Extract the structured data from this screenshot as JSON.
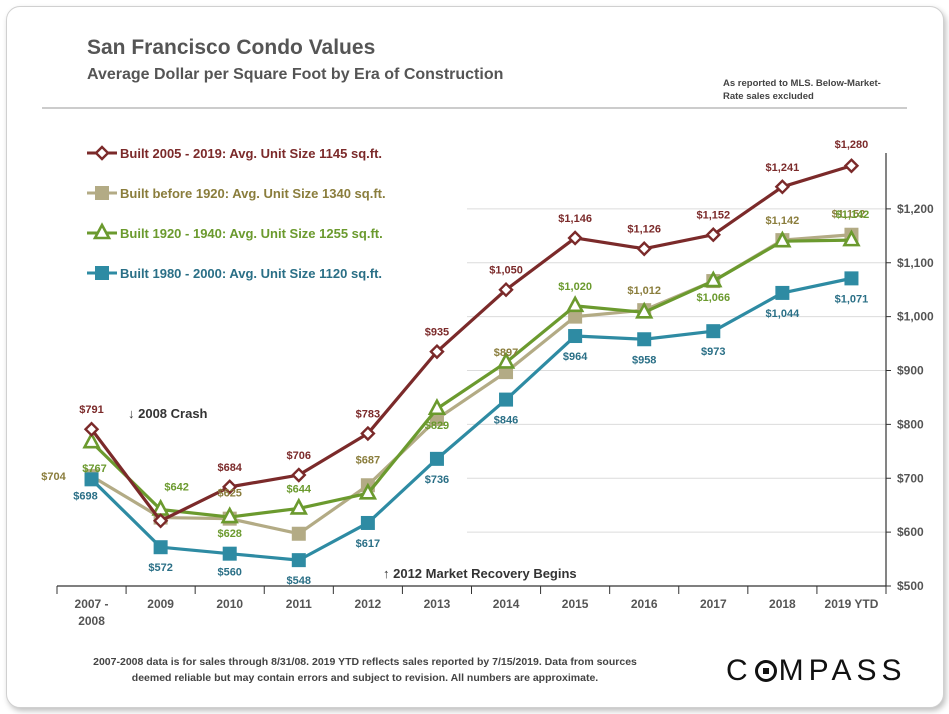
{
  "header": {
    "title": "San Francisco Condo Values",
    "subtitle": "Average Dollar per Square Foot by Era of Construction",
    "note_line1": "As reported to MLS. Below-Market-",
    "note_line2": "Rate sales excluded"
  },
  "footer": {
    "line1": "2007-2008 data is for sales through 8/31/08. 2019 YTD reflects sales reported by 7/15/2019. Data from sources",
    "line2": "deemed reliable but may contain errors and subject to revision. All numbers are approximate."
  },
  "logo": {
    "text_left": "C",
    "text_right": "MPASS"
  },
  "chart_data": {
    "type": "line",
    "title": "San Francisco Condo Values",
    "subtitle": "Average Dollar per Square Foot by Era of Construction",
    "categories": [
      "2007 - 2008",
      "2009",
      "2010",
      "2011",
      "2012",
      "2013",
      "2014",
      "2015",
      "2016",
      "2017",
      "2018",
      "2019  YTD"
    ],
    "category_lines": [
      [
        "2007 -",
        "2008"
      ],
      [
        "2009"
      ],
      [
        "2010"
      ],
      [
        "2011"
      ],
      [
        "2012"
      ],
      [
        "2013"
      ],
      [
        "2014"
      ],
      [
        "2015"
      ],
      [
        "2016"
      ],
      [
        "2017"
      ],
      [
        "2018"
      ],
      [
        "2019  YTD"
      ]
    ],
    "ylim": [
      500,
      1300
    ],
    "y_ticks": [
      500,
      600,
      700,
      800,
      900,
      1000,
      1100,
      1200
    ],
    "y_tick_labels": [
      "$500",
      "$600",
      "$700",
      "$800",
      "$900",
      "$1,000",
      "$1,100",
      "$1,200"
    ],
    "y_axis_side": "right",
    "legend_position": "top-left",
    "series": [
      {
        "name": "Built 2005 - 2019: Avg. Unit Size 1145 sq.ft.",
        "color": "#7B2A2A",
        "marker": "diamond",
        "values": [
          791,
          621,
          684,
          706,
          783,
          935,
          1050,
          1146,
          1126,
          1152,
          1241,
          1280
        ],
        "labels": [
          "$791",
          null,
          "$684",
          "$706",
          "$783",
          "$935",
          "$1,050",
          "$1,146",
          "$1,126",
          "$1,152",
          "$1,241",
          "$1,280"
        ]
      },
      {
        "name": "Built before 1920: Avg. Unit Size 1340 sq.ft.",
        "color": "#B3AB85",
        "label_color": "#8A7D3C",
        "marker": "square",
        "values": [
          704,
          627,
          625,
          597,
          687,
          810,
          897,
          1000,
          1012,
          1066,
          1142,
          1152
        ],
        "labels": [
          "$704",
          null,
          "$625",
          null,
          "$687",
          null,
          "$897",
          null,
          "$1,012",
          null,
          "$1,142",
          "$1,152"
        ]
      },
      {
        "name": "Built 1920 - 1940: Avg. Unit Size 1255 sq.ft.",
        "color": "#6B9A2E",
        "marker": "triangle",
        "values": [
          767,
          642,
          628,
          644,
          672,
          829,
          915,
          1020,
          1008,
          1066,
          1140,
          1142
        ],
        "labels": [
          "$767",
          "$642",
          "$628",
          "$644",
          null,
          "$829",
          null,
          "$1,020",
          null,
          "$1,066",
          null,
          "$1,142"
        ]
      },
      {
        "name": "Built 1980 - 2000: Avg. Unit Size 1120 sq.ft.",
        "color": "#2E8BA3",
        "label_color": "#2A6F86",
        "marker": "square",
        "values": [
          698,
          572,
          560,
          548,
          617,
          736,
          846,
          964,
          958,
          973,
          1044,
          1071
        ],
        "labels": [
          "$698",
          "$572",
          "$560",
          "$548",
          "$617",
          "$736",
          "$846",
          "$964",
          "$958",
          "$973",
          "$1,044",
          "$1,071"
        ]
      }
    ],
    "annotations": [
      {
        "text": "↓ 2008 Crash",
        "near_category": "2009"
      },
      {
        "text": "↑ 2012 Market Recovery Begins",
        "near_category": "2013"
      }
    ]
  }
}
